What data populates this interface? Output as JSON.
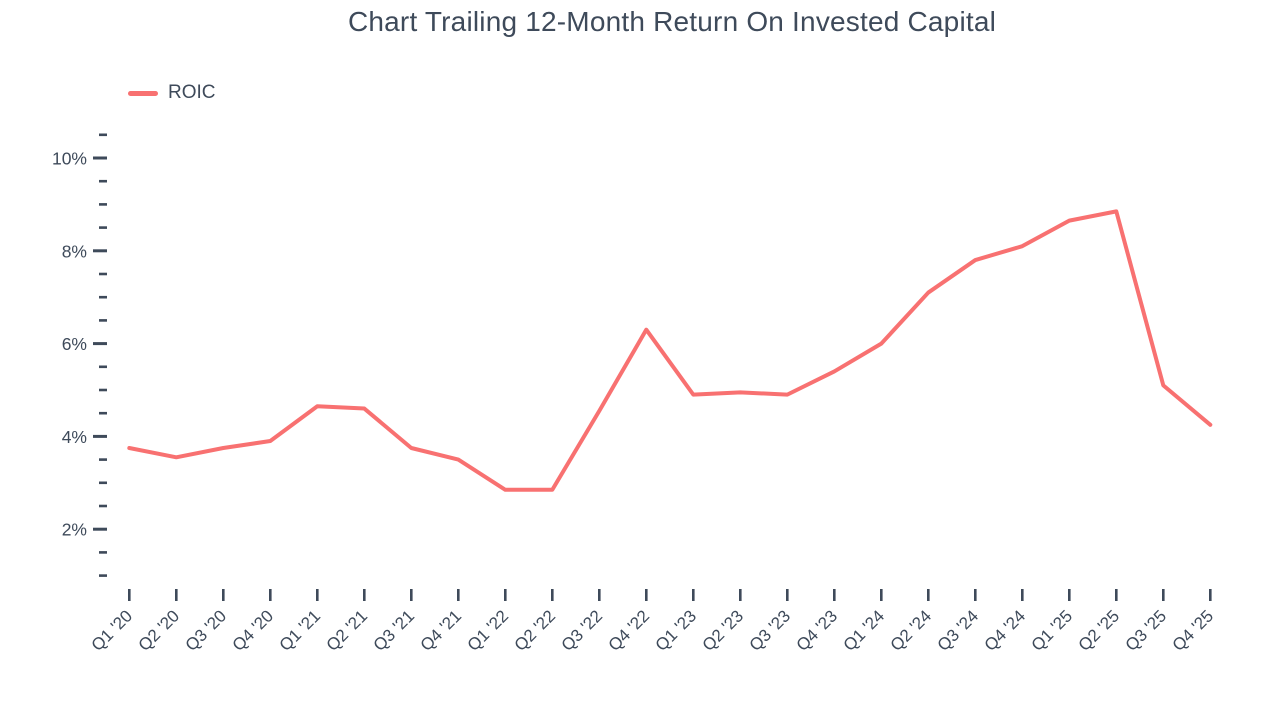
{
  "chart": {
    "title": "Chart Trailing 12-Month Return On Invested Capital",
    "legend_label": "ROIC",
    "colors": {
      "line": "#f87171",
      "text": "#3e4a5a",
      "tick": "#3e4a5a"
    }
  },
  "chart_data": {
    "type": "line",
    "title": "Chart Trailing 12-Month Return On Invested Capital",
    "xlabel": "",
    "ylabel": "",
    "unit": "%",
    "legend_position": "top-left",
    "grid": false,
    "categories": [
      "Q1 '20",
      "Q2 '20",
      "Q3 '20",
      "Q4 '20",
      "Q1 '21",
      "Q2 '21",
      "Q3 '21",
      "Q4 '21",
      "Q1 '22",
      "Q2 '22",
      "Q3 '22",
      "Q4 '22",
      "Q1 '23",
      "Q2 '23",
      "Q3 '23",
      "Q4 '23",
      "Q1 '24",
      "Q2 '24",
      "Q3 '24",
      "Q4 '24",
      "Q1 '25",
      "Q2 '25",
      "Q3 '25",
      "Q4 '25"
    ],
    "series": [
      {
        "name": "ROIC",
        "color": "#f87171",
        "values": [
          3.75,
          3.55,
          3.75,
          3.9,
          4.65,
          4.6,
          3.75,
          3.5,
          2.85,
          2.85,
          4.55,
          6.3,
          4.9,
          4.95,
          4.9,
          5.4,
          6.0,
          7.1,
          7.8,
          8.1,
          8.65,
          8.85,
          5.1,
          4.25
        ]
      }
    ],
    "y_axis": {
      "major_ticks": [
        2,
        4,
        6,
        8,
        10
      ],
      "major_tick_labels": [
        "2%",
        "4%",
        "6%",
        "8%",
        "10%"
      ],
      "minor_tick_step": 0.5,
      "min": 1.0,
      "max": 10.5
    }
  }
}
